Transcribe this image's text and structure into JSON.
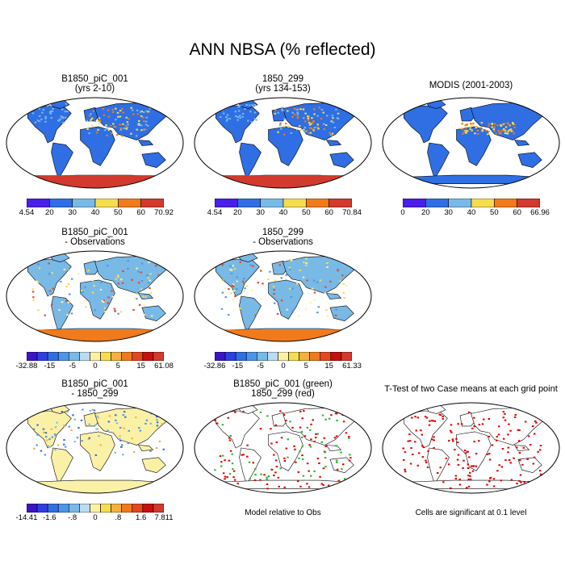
{
  "figure": {
    "title": "ANN NBSA (% reflected)"
  },
  "colors": {
    "abs_scale": [
      "#4a1fe6",
      "#2f6fe3",
      "#79b9e6",
      "#f6dd4f",
      "#f07a1c",
      "#d13a2d"
    ],
    "diff_scale": [
      "#3b14c8",
      "#2f3fe0",
      "#2f6fe3",
      "#4c95e8",
      "#79b9e6",
      "#b9dcf2",
      "#fbf1a6",
      "#f6dd4f",
      "#f4b13c",
      "#f07a1c",
      "#e6461f",
      "#c70f0f",
      "#d13a2d"
    ],
    "ttest_red": "#e00000",
    "ttest_green": "#2bb82b"
  },
  "panels": [
    {
      "id": "b1850",
      "title1": "B1850_piC_001",
      "title2": "(yrs 2-10)",
      "colorbar": "abs",
      "labels": [
        "4.54",
        "20",
        "30",
        "40",
        "50",
        "60",
        "70.92"
      ]
    },
    {
      "id": "p299",
      "title1": "1850_299",
      "title2": "(yrs 134-153)",
      "colorbar": "abs",
      "labels": [
        "4.54",
        "20",
        "30",
        "40",
        "50",
        "60",
        "70.84"
      ]
    },
    {
      "id": "modis",
      "title1": "MODIS (2001-2003)",
      "title2": "",
      "colorbar": "abs",
      "labels": [
        "0",
        "20",
        "30",
        "40",
        "50",
        "60",
        "66.96"
      ]
    },
    {
      "id": "b1850-obs",
      "title1": "B1850_piC_001",
      "title2": "- Observations",
      "colorbar": "diff",
      "labels": [
        "-32.88",
        "-15",
        "-5",
        "0",
        "5",
        "15",
        "61.08"
      ]
    },
    {
      "id": "p299-obs",
      "title1": "1850_299",
      "title2": "- Observations",
      "colorbar": "diff",
      "labels": [
        "-32.86",
        "-15",
        "-5",
        "0",
        "5",
        "15",
        "61.33"
      ]
    },
    {
      "id": "b1850-p299",
      "title1": "B1850_piC_001",
      "title2": "- 1850_299",
      "colorbar": "diff",
      "labels": [
        "-14.41",
        "-1.6",
        "-.8",
        "0",
        ".8",
        "1.6",
        "7.811"
      ]
    },
    {
      "id": "green-red",
      "title1": "B1850_piC_001 (green)",
      "title2": "1850_299 (red)",
      "colorbar": "none",
      "labels": [],
      "note": "Model relative to Obs"
    },
    {
      "id": "ttest",
      "title1": "T-Test of two Case means at each grid point",
      "title2": "",
      "colorbar": "none",
      "labels": [],
      "note": "Cells are significant at 0.1 level"
    }
  ]
}
